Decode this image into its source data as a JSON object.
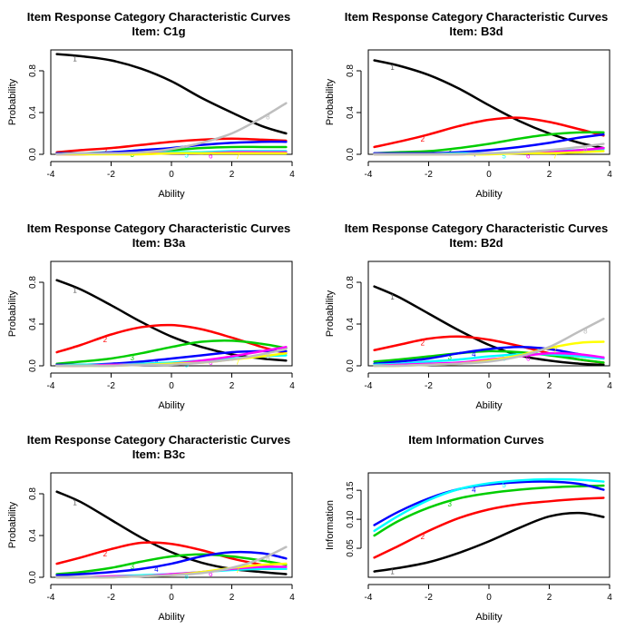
{
  "chart_data": [
    {
      "type": "line",
      "title": "Item Response Category Characteristic Curves",
      "subtitle": "Item: C1g",
      "xlabel": "Ability",
      "ylabel": "Probability",
      "xlim": [
        -4,
        4
      ],
      "ylim": [
        0,
        1
      ],
      "xticks": [
        "-4",
        "-2",
        "0",
        "2",
        "4"
      ],
      "yticks": [
        "0.0",
        "0.4",
        "0.8"
      ],
      "x": [
        -3.8,
        -3,
        -2,
        -1,
        0,
        1,
        2,
        3,
        3.8
      ],
      "series": [
        {
          "name": "1",
          "color": "#000000",
          "values": [
            0.96,
            0.94,
            0.9,
            0.82,
            0.7,
            0.54,
            0.4,
            0.27,
            0.2
          ]
        },
        {
          "name": "2",
          "color": "#ff0000",
          "values": [
            0.02,
            0.04,
            0.06,
            0.09,
            0.12,
            0.14,
            0.15,
            0.14,
            0.13
          ]
        },
        {
          "name": "3",
          "color": "#00cd00",
          "values": [
            0.01,
            0.01,
            0.02,
            0.03,
            0.04,
            0.06,
            0.07,
            0.07,
            0.07
          ]
        },
        {
          "name": "4",
          "color": "#0000ff",
          "values": [
            0.01,
            0.01,
            0.02,
            0.04,
            0.06,
            0.09,
            0.11,
            0.12,
            0.12
          ]
        },
        {
          "name": "5",
          "color": "#00ffff",
          "values": [
            0.0,
            0.01,
            0.01,
            0.01,
            0.02,
            0.02,
            0.03,
            0.03,
            0.03
          ]
        },
        {
          "name": "6",
          "color": "#ff00ff",
          "values": [
            0.0,
            0.0,
            0.01,
            0.01,
            0.01,
            0.01,
            0.02,
            0.02,
            0.02
          ]
        },
        {
          "name": "7",
          "color": "#ffff00",
          "values": [
            0.0,
            0.0,
            0.0,
            0.0,
            0.01,
            0.01,
            0.01,
            0.01,
            0.01
          ]
        },
        {
          "name": "8",
          "color": "#bebebe",
          "values": [
            0.0,
            0.01,
            0.01,
            0.02,
            0.05,
            0.11,
            0.2,
            0.35,
            0.49
          ]
        }
      ]
    },
    {
      "type": "line",
      "title": "Item Response Category Characteristic Curves",
      "subtitle": "Item: B3d",
      "xlabel": "Ability",
      "ylabel": "Probability",
      "xlim": [
        -4,
        4
      ],
      "ylim": [
        0,
        1
      ],
      "xticks": [
        "-4",
        "-2",
        "0",
        "2",
        "4"
      ],
      "yticks": [
        "0.0",
        "0.4",
        "0.8"
      ],
      "x": [
        -3.8,
        -3,
        -2,
        -1,
        0,
        1,
        2,
        3,
        3.8
      ],
      "series": [
        {
          "name": "1",
          "color": "#000000",
          "values": [
            0.9,
            0.85,
            0.76,
            0.63,
            0.47,
            0.32,
            0.2,
            0.11,
            0.06
          ]
        },
        {
          "name": "2",
          "color": "#ff0000",
          "values": [
            0.07,
            0.12,
            0.19,
            0.27,
            0.33,
            0.35,
            0.31,
            0.24,
            0.18
          ]
        },
        {
          "name": "3",
          "color": "#00cd00",
          "values": [
            0.01,
            0.02,
            0.03,
            0.06,
            0.1,
            0.15,
            0.19,
            0.21,
            0.21
          ]
        },
        {
          "name": "4",
          "color": "#0000ff",
          "values": [
            0.01,
            0.01,
            0.01,
            0.02,
            0.04,
            0.07,
            0.11,
            0.16,
            0.19
          ]
        },
        {
          "name": "5",
          "color": "#00ffff",
          "values": [
            0.0,
            0.0,
            0.0,
            0.01,
            0.01,
            0.02,
            0.03,
            0.04,
            0.05
          ]
        },
        {
          "name": "6",
          "color": "#ff00ff",
          "values": [
            0.0,
            0.0,
            0.0,
            0.0,
            0.01,
            0.01,
            0.02,
            0.04,
            0.06
          ]
        },
        {
          "name": "7",
          "color": "#ffff00",
          "values": [
            0.0,
            0.0,
            0.0,
            0.0,
            0.0,
            0.01,
            0.01,
            0.02,
            0.03
          ]
        },
        {
          "name": "8",
          "color": "#bebebe",
          "values": [
            0.0,
            0.0,
            0.0,
            0.0,
            0.01,
            0.02,
            0.04,
            0.07,
            0.1
          ]
        }
      ]
    },
    {
      "type": "line",
      "title": "Item Response Category Characteristic Curves",
      "subtitle": "Item: B3a",
      "xlabel": "Ability",
      "ylabel": "Probability",
      "xlim": [
        -4,
        4
      ],
      "ylim": [
        0,
        1
      ],
      "xticks": [
        "-4",
        "-2",
        "0",
        "2",
        "4"
      ],
      "yticks": [
        "0.0",
        "0.4",
        "0.8"
      ],
      "x": [
        -3.8,
        -3,
        -2,
        -1,
        0,
        1,
        2,
        3,
        3.8
      ],
      "series": [
        {
          "name": "1",
          "color": "#000000",
          "values": [
            0.82,
            0.73,
            0.58,
            0.42,
            0.28,
            0.18,
            0.11,
            0.07,
            0.05
          ]
        },
        {
          "name": "2",
          "color": "#ff0000",
          "values": [
            0.13,
            0.2,
            0.3,
            0.37,
            0.39,
            0.35,
            0.27,
            0.18,
            0.12
          ]
        },
        {
          "name": "3",
          "color": "#00cd00",
          "values": [
            0.02,
            0.04,
            0.07,
            0.12,
            0.18,
            0.23,
            0.24,
            0.21,
            0.17
          ]
        },
        {
          "name": "4",
          "color": "#0000ff",
          "values": [
            0.01,
            0.01,
            0.02,
            0.04,
            0.07,
            0.1,
            0.13,
            0.14,
            0.14
          ]
        },
        {
          "name": "5",
          "color": "#00ffff",
          "values": [
            0.0,
            0.01,
            0.01,
            0.02,
            0.03,
            0.05,
            0.07,
            0.09,
            0.1
          ]
        },
        {
          "name": "6",
          "color": "#ff00ff",
          "values": [
            0.0,
            0.0,
            0.01,
            0.01,
            0.02,
            0.05,
            0.09,
            0.14,
            0.18
          ]
        },
        {
          "name": "7",
          "color": "#ffff00",
          "values": [
            0.0,
            0.0,
            0.0,
            0.01,
            0.02,
            0.03,
            0.06,
            0.09,
            0.12
          ]
        },
        {
          "name": "8",
          "color": "#bebebe",
          "values": [
            0.0,
            0.0,
            0.0,
            0.01,
            0.01,
            0.03,
            0.06,
            0.11,
            0.16
          ]
        }
      ]
    },
    {
      "type": "line",
      "title": "Item Response Category Characteristic Curves",
      "subtitle": "Item: B2d",
      "xlabel": "Ability",
      "ylabel": "Probability",
      "xlim": [
        -4,
        4
      ],
      "ylim": [
        0,
        1
      ],
      "xticks": [
        "-4",
        "-2",
        "0",
        "2",
        "4"
      ],
      "yticks": [
        "0.0",
        "0.4",
        "0.8"
      ],
      "x": [
        -3.8,
        -3,
        -2,
        -1,
        0,
        1,
        2,
        3,
        3.8
      ],
      "series": [
        {
          "name": "1",
          "color": "#000000",
          "values": [
            0.76,
            0.66,
            0.5,
            0.34,
            0.2,
            0.1,
            0.05,
            0.02,
            0.01
          ]
        },
        {
          "name": "2",
          "color": "#ff0000",
          "values": [
            0.15,
            0.2,
            0.26,
            0.28,
            0.25,
            0.19,
            0.12,
            0.06,
            0.03
          ]
        },
        {
          "name": "3",
          "color": "#00cd00",
          "values": [
            0.04,
            0.06,
            0.09,
            0.12,
            0.14,
            0.13,
            0.1,
            0.06,
            0.03
          ]
        },
        {
          "name": "4",
          "color": "#0000ff",
          "values": [
            0.02,
            0.04,
            0.07,
            0.12,
            0.16,
            0.18,
            0.16,
            0.11,
            0.07
          ]
        },
        {
          "name": "5",
          "color": "#00ffff",
          "values": [
            0.01,
            0.02,
            0.04,
            0.06,
            0.09,
            0.11,
            0.11,
            0.09,
            0.07
          ]
        },
        {
          "name": "6",
          "color": "#ff00ff",
          "values": [
            0.0,
            0.01,
            0.02,
            0.03,
            0.06,
            0.09,
            0.12,
            0.11,
            0.08
          ]
        },
        {
          "name": "7",
          "color": "#ffff00",
          "values": [
            0.0,
            0.0,
            0.01,
            0.02,
            0.05,
            0.1,
            0.17,
            0.22,
            0.23
          ]
        },
        {
          "name": "8",
          "color": "#bebebe",
          "values": [
            0.0,
            0.0,
            0.01,
            0.02,
            0.04,
            0.09,
            0.18,
            0.33,
            0.45
          ]
        }
      ]
    },
    {
      "type": "line",
      "title": "Item Response Category Characteristic Curves",
      "subtitle": "Item: B3c",
      "xlabel": "Ability",
      "ylabel": "Probability",
      "xlim": [
        -4,
        4
      ],
      "ylim": [
        0,
        1
      ],
      "xticks": [
        "-4",
        "-2",
        "0",
        "2",
        "4"
      ],
      "yticks": [
        "0.0",
        "0.4",
        "0.8"
      ],
      "x": [
        -3.8,
        -3,
        -2,
        -1,
        0,
        1,
        2,
        3,
        3.8
      ],
      "series": [
        {
          "name": "1",
          "color": "#000000",
          "values": [
            0.82,
            0.72,
            0.55,
            0.38,
            0.24,
            0.14,
            0.08,
            0.05,
            0.03
          ]
        },
        {
          "name": "2",
          "color": "#ff0000",
          "values": [
            0.13,
            0.19,
            0.27,
            0.33,
            0.32,
            0.26,
            0.18,
            0.12,
            0.08
          ]
        },
        {
          "name": "3",
          "color": "#00cd00",
          "values": [
            0.03,
            0.05,
            0.09,
            0.15,
            0.2,
            0.22,
            0.2,
            0.16,
            0.12
          ]
        },
        {
          "name": "4",
          "color": "#0000ff",
          "values": [
            0.02,
            0.03,
            0.05,
            0.08,
            0.13,
            0.2,
            0.24,
            0.23,
            0.18
          ]
        },
        {
          "name": "5",
          "color": "#00ffff",
          "values": [
            0.0,
            0.0,
            0.01,
            0.02,
            0.03,
            0.05,
            0.07,
            0.08,
            0.08
          ]
        },
        {
          "name": "6",
          "color": "#ff00ff",
          "values": [
            0.0,
            0.0,
            0.01,
            0.01,
            0.03,
            0.05,
            0.08,
            0.1,
            0.1
          ]
        },
        {
          "name": "7",
          "color": "#ffff00",
          "values": [
            0.0,
            0.0,
            0.0,
            0.01,
            0.02,
            0.05,
            0.09,
            0.12,
            0.13
          ]
        },
        {
          "name": "8",
          "color": "#bebebe",
          "values": [
            0.0,
            0.0,
            0.0,
            0.01,
            0.02,
            0.04,
            0.09,
            0.18,
            0.29
          ]
        }
      ]
    },
    {
      "type": "line",
      "title": "Item Information Curves",
      "subtitle": "",
      "xlabel": "Ability",
      "ylabel": "Information",
      "xlim": [
        -4,
        4
      ],
      "ylim": [
        0.0,
        0.18
      ],
      "xticks": [
        "-4",
        "-2",
        "0",
        "2",
        "4"
      ],
      "yticks": [
        "0.05",
        "0.10",
        "0.15"
      ],
      "x": [
        -3.8,
        -3,
        -2,
        -1,
        0,
        1,
        2,
        3,
        3.8
      ],
      "series": [
        {
          "name": "1",
          "color": "#000000",
          "values": [
            0.01,
            0.016,
            0.026,
            0.042,
            0.062,
            0.085,
            0.105,
            0.111,
            0.104
          ]
        },
        {
          "name": "2",
          "color": "#ff0000",
          "values": [
            0.034,
            0.054,
            0.08,
            0.102,
            0.117,
            0.126,
            0.131,
            0.135,
            0.137
          ]
        },
        {
          "name": "3",
          "color": "#00cd00",
          "values": [
            0.072,
            0.097,
            0.12,
            0.136,
            0.145,
            0.151,
            0.155,
            0.157,
            0.158
          ]
        },
        {
          "name": "4",
          "color": "#0000ff",
          "values": [
            0.09,
            0.113,
            0.136,
            0.152,
            0.16,
            0.164,
            0.165,
            0.161,
            0.151
          ]
        },
        {
          "name": "5",
          "color": "#00ffff",
          "values": [
            0.08,
            0.106,
            0.133,
            0.152,
            0.162,
            0.167,
            0.169,
            0.168,
            0.165
          ]
        }
      ]
    }
  ]
}
